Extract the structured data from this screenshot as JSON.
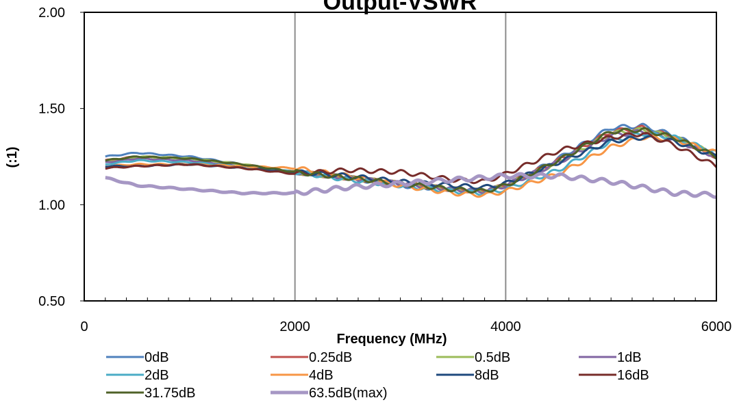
{
  "chart_data": {
    "type": "line",
    "title": "Output-VSWR",
    "xlabel": "Frequency (MHz)",
    "ylabel": "(:1)",
    "xlim": [
      0,
      6000
    ],
    "ylim": [
      0.5,
      2.0
    ],
    "x_ticks": [
      "0",
      "2000",
      "4000",
      "6000"
    ],
    "y_ticks": [
      "0.50",
      "1.00",
      "1.50",
      "2.00"
    ],
    "grid": "vertical major gridlines",
    "legend_position": "bottom",
    "x": [
      200,
      500,
      1000,
      1500,
      2000,
      2500,
      3000,
      3500,
      3800,
      4000,
      4500,
      5000,
      5300,
      5600,
      6000
    ],
    "series": [
      {
        "name": "0dB",
        "color": "#4f81bd",
        "values": [
          1.25,
          1.27,
          1.25,
          1.21,
          1.17,
          1.14,
          1.1,
          1.08,
          1.07,
          1.1,
          1.24,
          1.4,
          1.41,
          1.36,
          1.25
        ]
      },
      {
        "name": "0.25dB",
        "color": "#c0504d",
        "values": [
          1.23,
          1.25,
          1.24,
          1.21,
          1.17,
          1.14,
          1.11,
          1.08,
          1.07,
          1.1,
          1.23,
          1.38,
          1.4,
          1.35,
          1.25
        ]
      },
      {
        "name": "0.5dB",
        "color": "#9bbb59",
        "values": [
          1.22,
          1.25,
          1.24,
          1.21,
          1.17,
          1.14,
          1.11,
          1.08,
          1.07,
          1.1,
          1.22,
          1.37,
          1.39,
          1.35,
          1.26
        ]
      },
      {
        "name": "1dB",
        "color": "#8064a2",
        "values": [
          1.22,
          1.24,
          1.23,
          1.2,
          1.17,
          1.14,
          1.11,
          1.08,
          1.07,
          1.1,
          1.22,
          1.36,
          1.38,
          1.34,
          1.25
        ]
      },
      {
        "name": "2dB",
        "color": "#4bacc6",
        "values": [
          1.21,
          1.23,
          1.22,
          1.2,
          1.17,
          1.13,
          1.1,
          1.07,
          1.06,
          1.08,
          1.18,
          1.33,
          1.37,
          1.35,
          1.27
        ]
      },
      {
        "name": "4dB",
        "color": "#f79646",
        "values": [
          1.2,
          1.21,
          1.21,
          1.2,
          1.19,
          1.15,
          1.1,
          1.06,
          1.05,
          1.07,
          1.16,
          1.3,
          1.35,
          1.34,
          1.27
        ]
      },
      {
        "name": "8dB",
        "color": "#1f497d",
        "values": [
          1.2,
          1.2,
          1.21,
          1.19,
          1.17,
          1.15,
          1.12,
          1.1,
          1.09,
          1.11,
          1.22,
          1.33,
          1.35,
          1.33,
          1.25
        ]
      },
      {
        "name": "16dB",
        "color": "#772c2a",
        "values": [
          1.19,
          1.2,
          1.21,
          1.19,
          1.16,
          1.18,
          1.17,
          1.13,
          1.12,
          1.16,
          1.28,
          1.35,
          1.37,
          1.31,
          1.2
        ]
      },
      {
        "name": "31.75dB",
        "color": "#4f6228",
        "values": [
          1.23,
          1.25,
          1.24,
          1.21,
          1.17,
          1.14,
          1.11,
          1.08,
          1.07,
          1.1,
          1.23,
          1.38,
          1.39,
          1.35,
          1.25
        ]
      },
      {
        "name": "63.5dB(max)",
        "color": "#a697c4",
        "values": [
          1.14,
          1.1,
          1.08,
          1.06,
          1.06,
          1.09,
          1.11,
          1.13,
          1.14,
          1.15,
          1.15,
          1.12,
          1.09,
          1.06,
          1.05
        ]
      }
    ]
  }
}
